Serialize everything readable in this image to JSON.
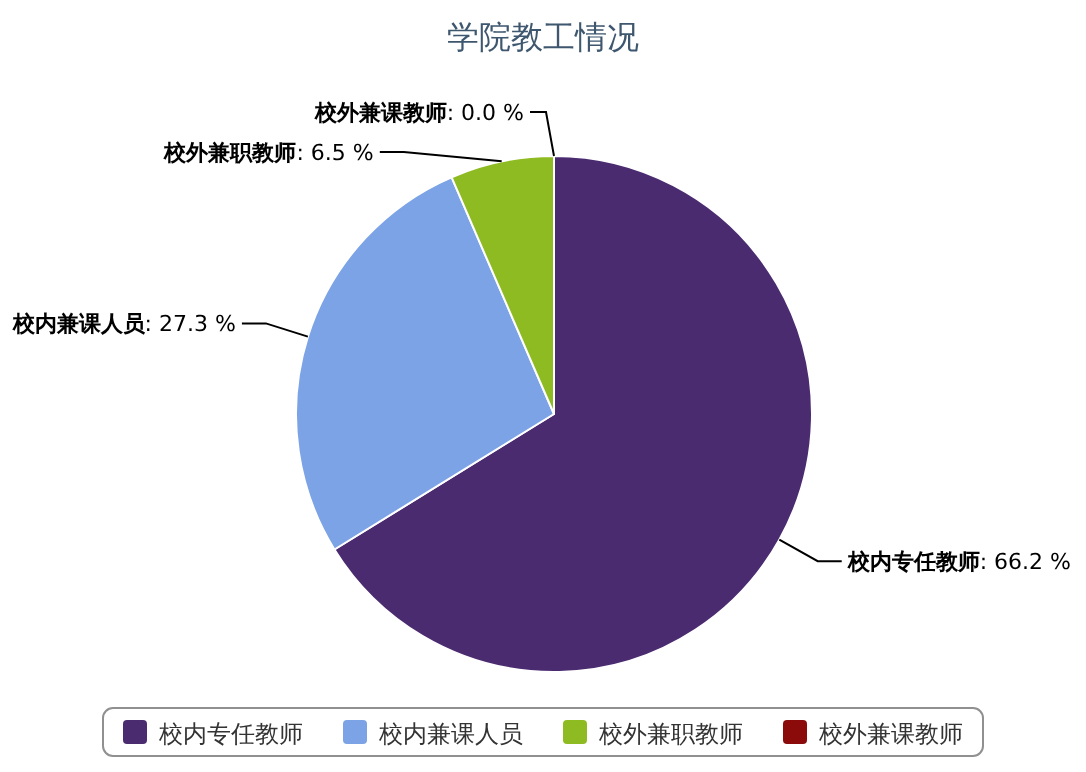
{
  "chart_data": {
    "type": "pie",
    "title": "学院教工情况",
    "categories": [
      "校内专任教师",
      "校内兼课人员",
      "校外兼职教师",
      "校外兼课教师"
    ],
    "values": [
      66.2,
      27.3,
      6.5,
      0.0
    ],
    "value_labels": [
      ": 66.2 %",
      ": 27.3 %",
      ": 6.5 %",
      ": 0.0 %"
    ],
    "colors": [
      "#4b2b70",
      "#7ba3e6",
      "#8fbb22",
      "#8b0a0a"
    ],
    "legend": "bottom"
  }
}
